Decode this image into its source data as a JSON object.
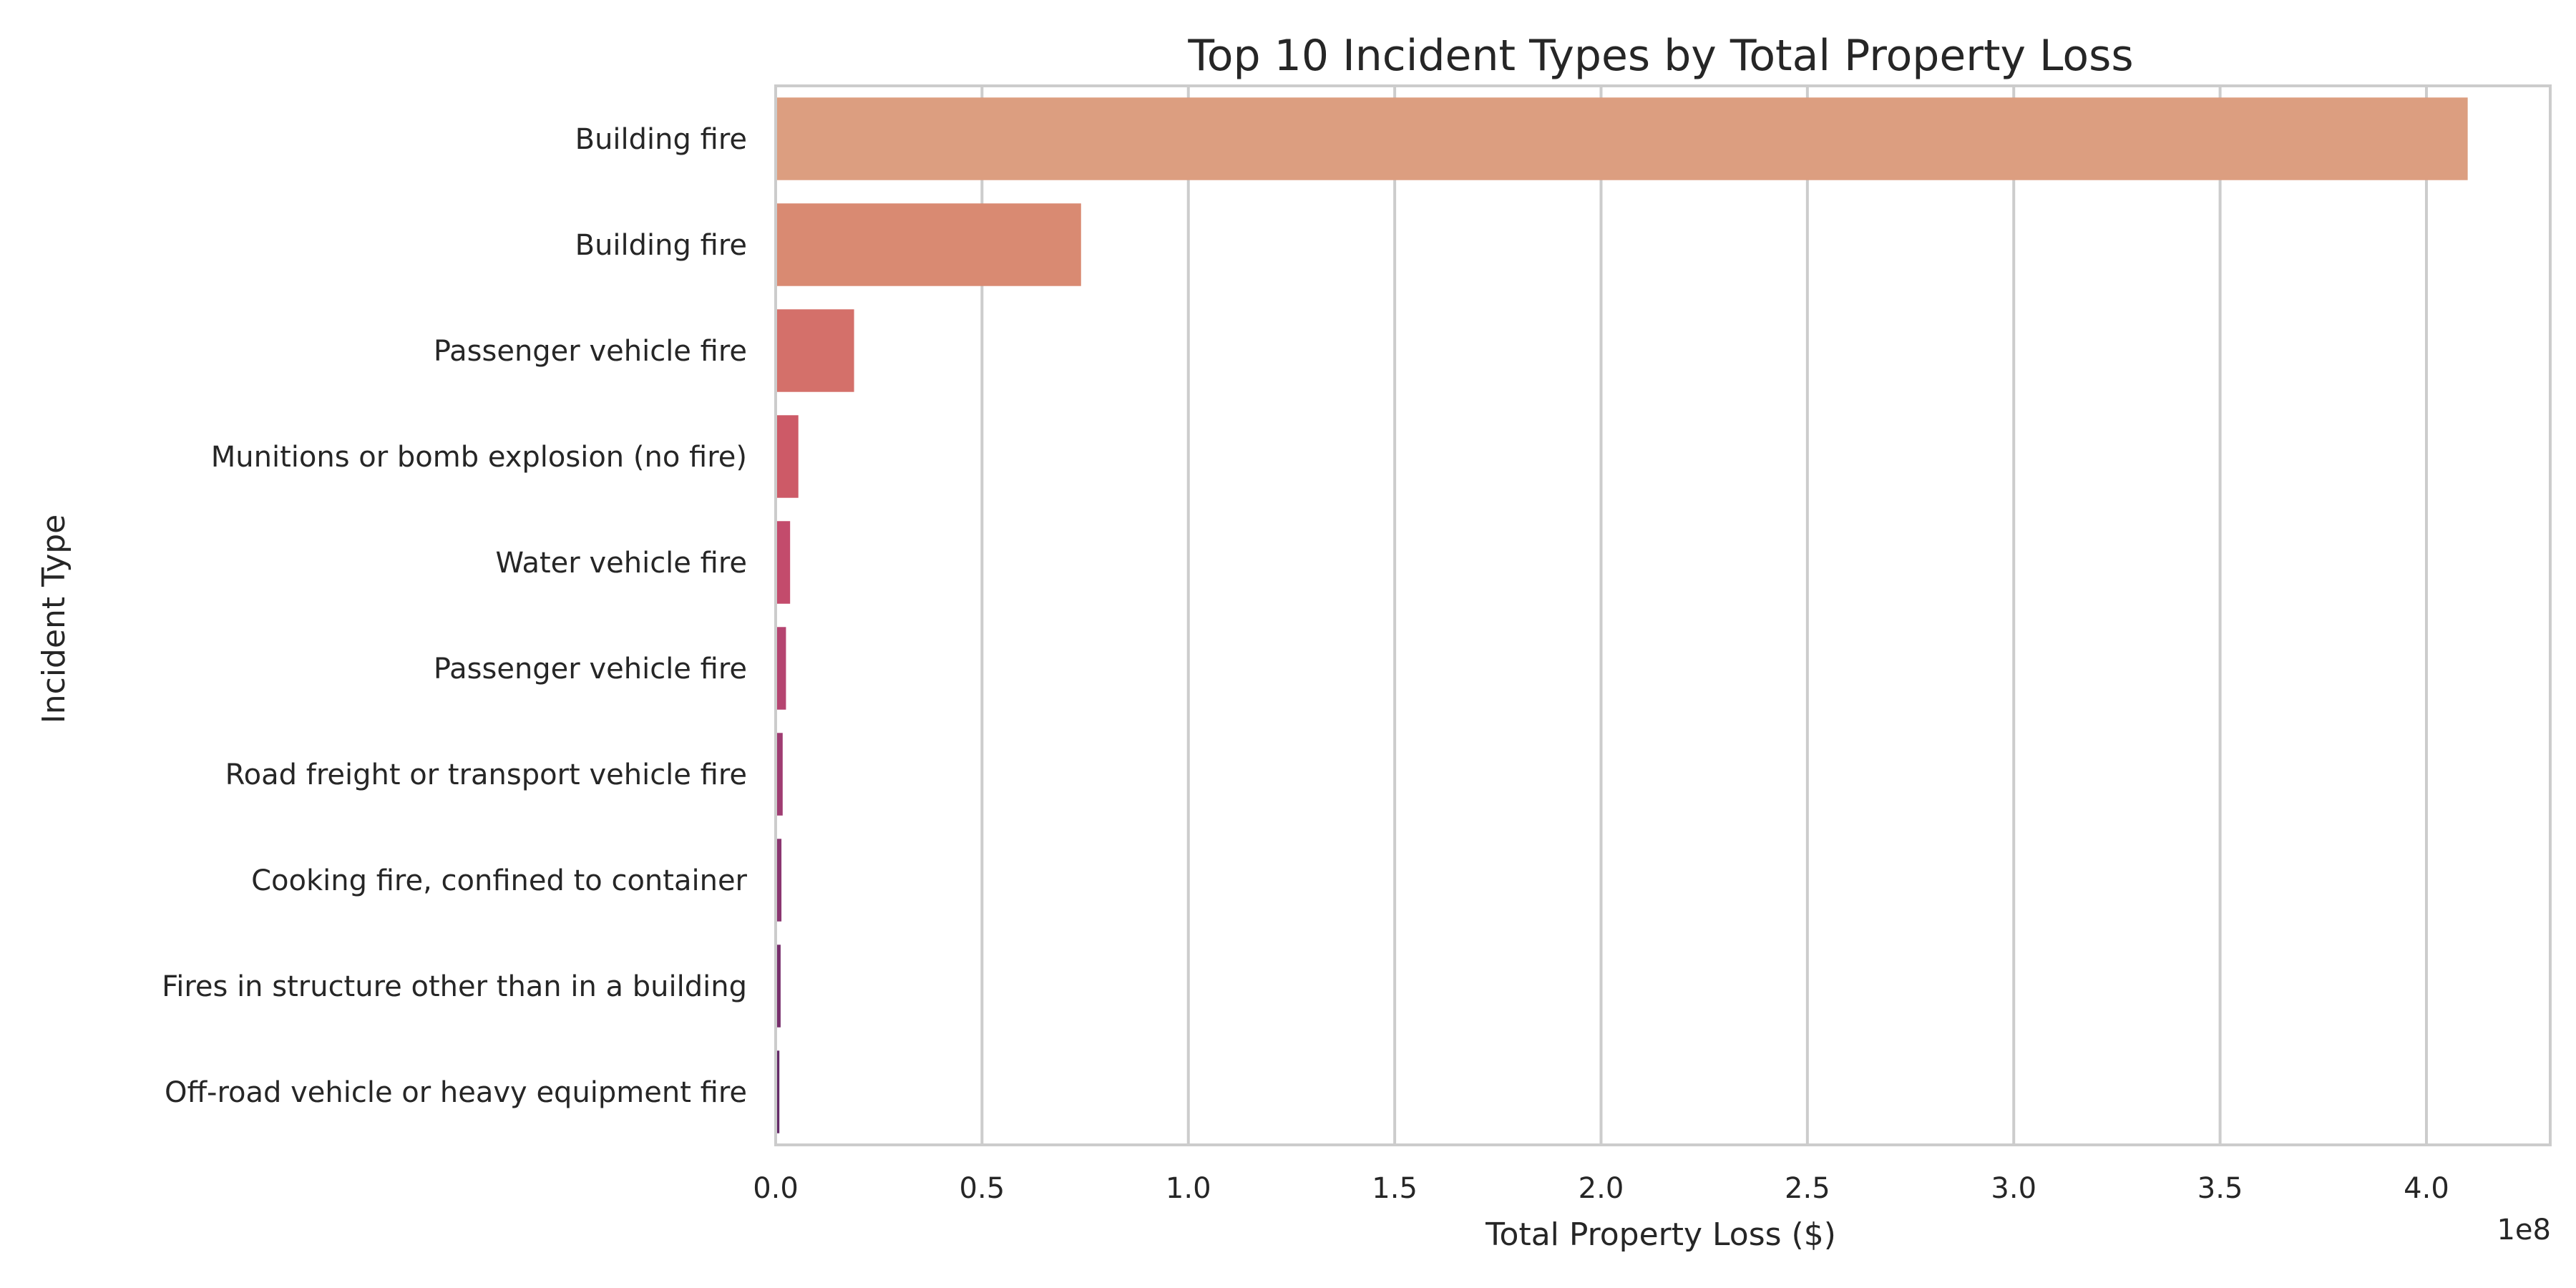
{
  "chart_data": {
    "type": "bar",
    "orientation": "horizontal",
    "title": "Top 10 Incident Types by Total Property Loss",
    "xlabel": "Total Property Loss ($)",
    "ylabel": "Incident Type",
    "x_offset_label": "1e8",
    "xlim": [
      0,
      4.3
    ],
    "xticks": [
      0.0,
      0.5,
      1.0,
      1.5,
      2.0,
      2.5,
      3.0,
      3.5,
      4.0
    ],
    "xtick_labels": [
      "0.0",
      "0.5",
      "1.0",
      "1.5",
      "2.0",
      "2.5",
      "3.0",
      "3.5",
      "4.0"
    ],
    "value_scale": 100000000,
    "grid": "vertical",
    "categories": [
      "Building fire",
      "Building fire",
      "Passenger vehicle fire",
      "Munitions or bomb explosion (no fire)",
      "Water vehicle fire",
      "Passenger vehicle fire",
      "Road freight or transport vehicle fire",
      "Cooking fire, confined to container",
      "Fires in structure other than in a building",
      "Off-road vehicle or heavy equipment fire"
    ],
    "values": [
      4.1,
      0.74,
      0.19,
      0.055,
      0.035,
      0.025,
      0.017,
      0.014,
      0.012,
      0.009
    ],
    "colors": [
      "#dc9e80",
      "#d98a72",
      "#d4706a",
      "#cd5a67",
      "#c34b6c",
      "#b54470",
      "#9f3c72",
      "#8a3570",
      "#772f6c",
      "#642a68"
    ]
  }
}
